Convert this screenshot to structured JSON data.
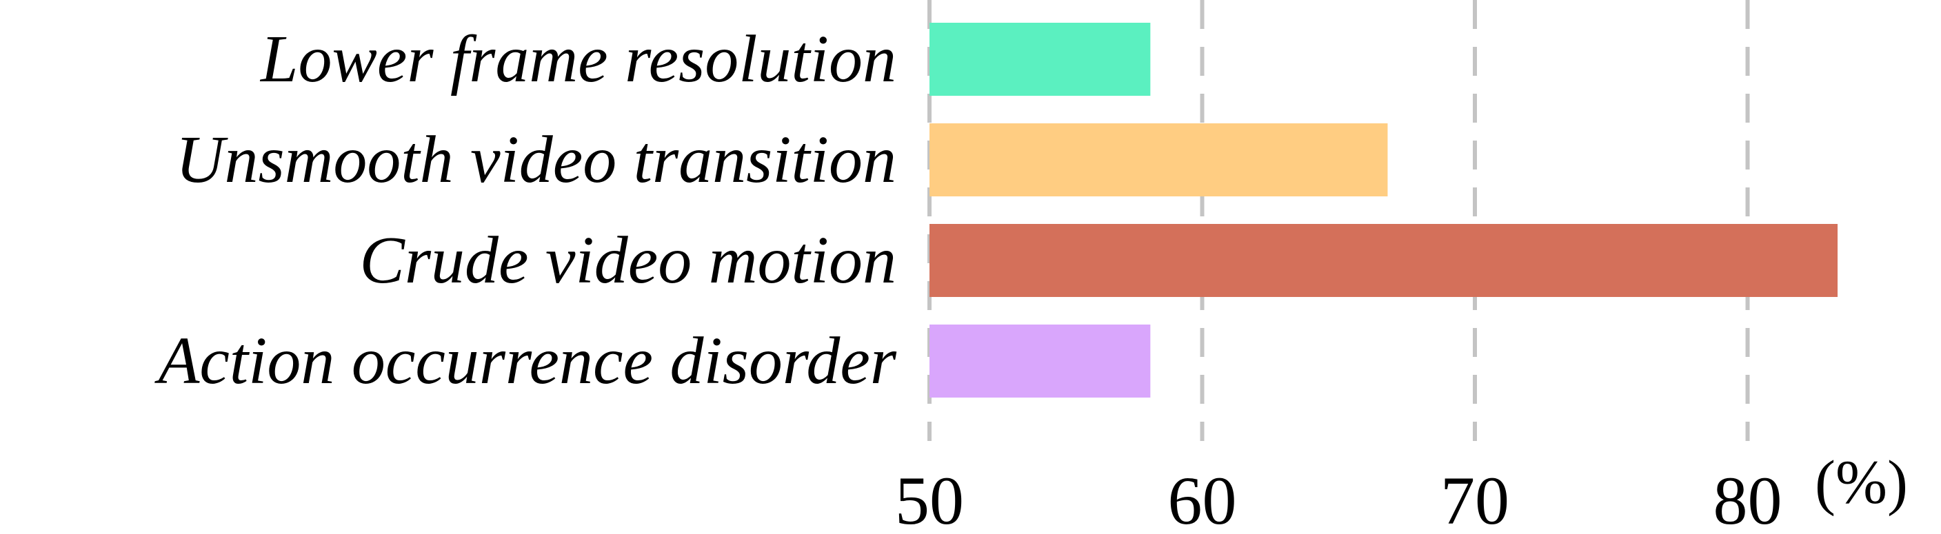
{
  "chart_data": {
    "type": "bar",
    "orientation": "horizontal",
    "categories": [
      "Lower frame resolution",
      "Unsmooth video transition",
      "Crude video motion",
      "Action occurrence disorder"
    ],
    "values": [
      58.1,
      66.8,
      83.3,
      58.1
    ],
    "colors": [
      "#5bf0c0",
      "#ffcd82",
      "#d4705a",
      "#d9a6fc"
    ],
    "xlim": [
      50,
      84
    ],
    "xticks": [
      50,
      60,
      70,
      80
    ],
    "xtick_labels": [
      "50",
      "60",
      "70",
      "80"
    ],
    "x_unit": "(%)",
    "grid": "vertical-dashed",
    "gridline_color": "#c4c4c4",
    "legend": "none"
  }
}
